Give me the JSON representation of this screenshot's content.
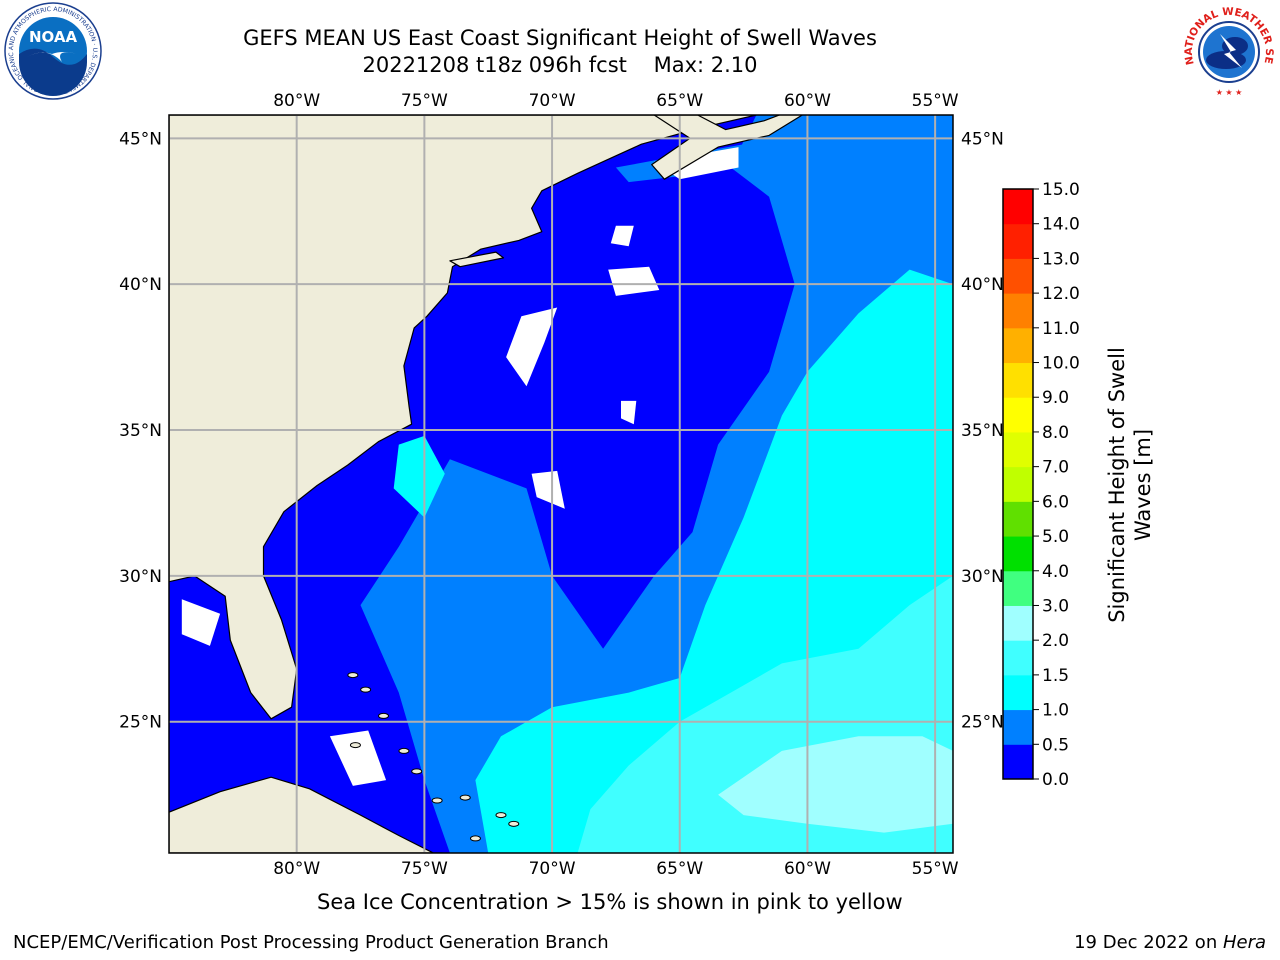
{
  "header": {
    "title_line1": "GEFS MEAN US East Coast Significant Height of Swell Waves",
    "title_line2": "20221208 t18z 096h fcst    Max: 2.10"
  },
  "logos": {
    "noaa_text": "NOAA",
    "noaa_ring": "NATIONAL OCEANIC AND ATMOSPHERIC ADMINISTRATION · U.S. DEPARTMENT OF COMMERCE ·",
    "nws_ring": "NATIONAL WEATHER SERVICE"
  },
  "map": {
    "lon_ticks": [
      {
        "lon": -80,
        "label": "80°W"
      },
      {
        "lon": -75,
        "label": "75°W"
      },
      {
        "lon": -70,
        "label": "70°W"
      },
      {
        "lon": -65,
        "label": "65°W"
      },
      {
        "lon": -60,
        "label": "60°W"
      },
      {
        "lon": -55,
        "label": "55°W"
      }
    ],
    "lat_ticks": [
      {
        "lat": 45,
        "label": "45°N"
      },
      {
        "lat": 40,
        "label": "40°N"
      },
      {
        "lat": 35,
        "label": "35°N"
      },
      {
        "lat": 30,
        "label": "30°N"
      },
      {
        "lat": 25,
        "label": "25°N"
      }
    ],
    "extent": {
      "lon_min": -85,
      "lon_max": -54.3,
      "lat_min": 20.5,
      "lat_max": 45.8
    },
    "colors": {
      "land": "#efedda",
      "ocean_base": "#0000ff",
      "grid": "#b0b0b0"
    }
  },
  "colorbar": {
    "label_line1": "Significant Height of Swell",
    "label_line2": "Waves [m]",
    "levels": [
      "0.0",
      "0.5",
      "1.0",
      "1.5",
      "2.0",
      "3.0",
      "4.0",
      "5.0",
      "6.0",
      "7.0",
      "8.0",
      "9.0",
      "10.0",
      "11.0",
      "12.0",
      "13.0",
      "14.0",
      "15.0"
    ],
    "colors": [
      "#0000ff",
      "#0080ff",
      "#00ffff",
      "#40ffff",
      "#a0ffff",
      "#40ff80",
      "#00e000",
      "#60e000",
      "#c0ff00",
      "#e0ff00",
      "#ffff00",
      "#ffe000",
      "#ffb000",
      "#ff8000",
      "#ff5000",
      "#ff2000",
      "#ff0000"
    ]
  },
  "footer": {
    "sea_ice_note": "Sea Ice Concentration > 15% is shown in pink to yellow",
    "credit": "NCEP/EMC/Verification Post Processing Product Generation Branch",
    "date_text": "19 Dec 2022 on ",
    "machine": "Hera"
  }
}
